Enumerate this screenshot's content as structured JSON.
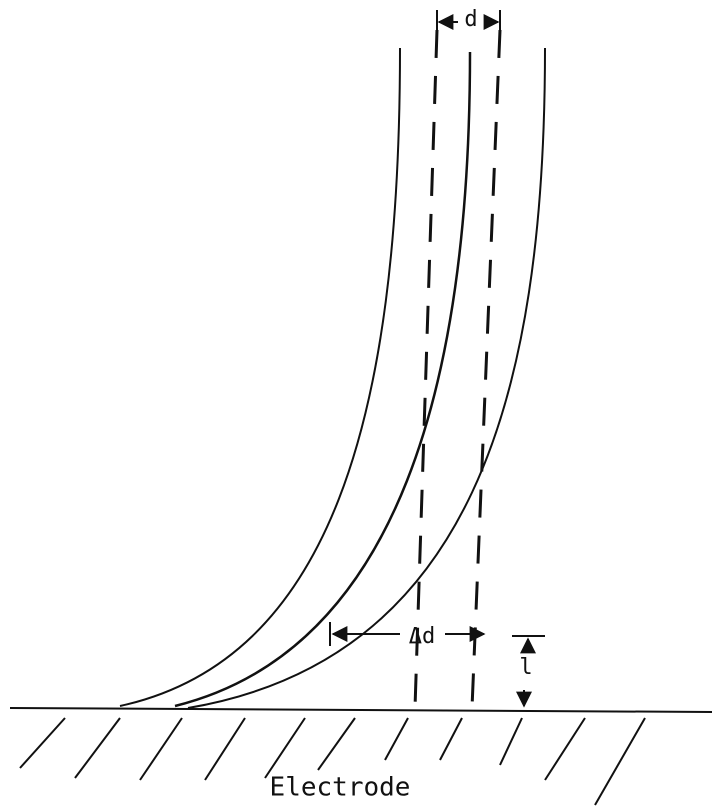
{
  "labels": {
    "d": "d",
    "delta_d": "Δd",
    "l": "l",
    "electrode": "Electrode"
  }
}
